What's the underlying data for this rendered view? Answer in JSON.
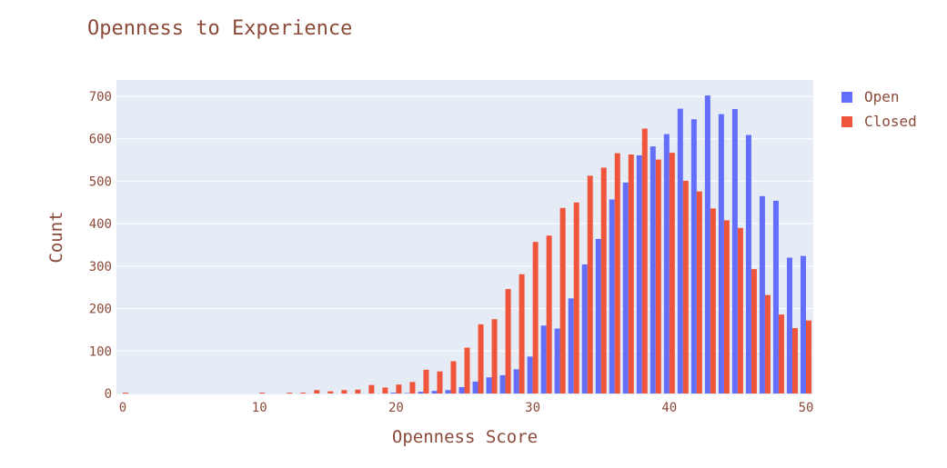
{
  "colors": {
    "text": "#8b4a3a",
    "plot_bg": "#e5ecf6",
    "grid": "#ffffff",
    "open": "#636efa",
    "closed": "#ef553b"
  },
  "chart_data": {
    "type": "bar",
    "title": "Openness to Experience",
    "xlabel": "Openness Score",
    "ylabel": "Count",
    "xlim": [
      0,
      50
    ],
    "ylim": [
      0,
      700
    ],
    "xticks": [
      0,
      10,
      20,
      30,
      40,
      50
    ],
    "yticks": [
      0,
      100,
      200,
      300,
      400,
      500,
      600,
      700
    ],
    "grid": true,
    "legend_position": "top-right",
    "x": [
      0,
      1,
      2,
      3,
      4,
      5,
      6,
      7,
      8,
      9,
      10,
      11,
      12,
      13,
      14,
      15,
      16,
      17,
      18,
      19,
      20,
      21,
      22,
      23,
      24,
      25,
      26,
      27,
      28,
      29,
      30,
      31,
      32,
      33,
      34,
      35,
      36,
      37,
      38,
      39,
      40,
      41,
      42,
      43,
      44,
      45,
      46,
      47,
      48,
      49,
      50
    ],
    "series": [
      {
        "name": "Open",
        "color": "#636efa",
        "values": [
          0,
          0,
          0,
          0,
          0,
          0,
          0,
          0,
          0,
          0,
          0,
          0,
          0,
          0,
          0,
          0,
          0,
          0,
          0,
          0,
          2,
          1,
          4,
          6,
          8,
          15,
          28,
          38,
          43,
          57,
          87,
          160,
          153,
          224,
          304,
          364,
          457,
          497,
          561,
          582,
          611,
          671,
          646,
          702,
          658,
          670,
          609,
          465,
          454,
          320,
          324
        ]
      },
      {
        "name": "Closed",
        "color": "#ef553b",
        "values": [
          2,
          0,
          0,
          0,
          0,
          0,
          0,
          0,
          0,
          0,
          2,
          0,
          2,
          2,
          8,
          5,
          8,
          9,
          20,
          14,
          21,
          27,
          56,
          52,
          76,
          108,
          163,
          175,
          246,
          281,
          357,
          372,
          437,
          450,
          513,
          532,
          566,
          563,
          624,
          551,
          567,
          501,
          476,
          436,
          408,
          390,
          293,
          232,
          186,
          154,
          172
        ]
      }
    ]
  }
}
